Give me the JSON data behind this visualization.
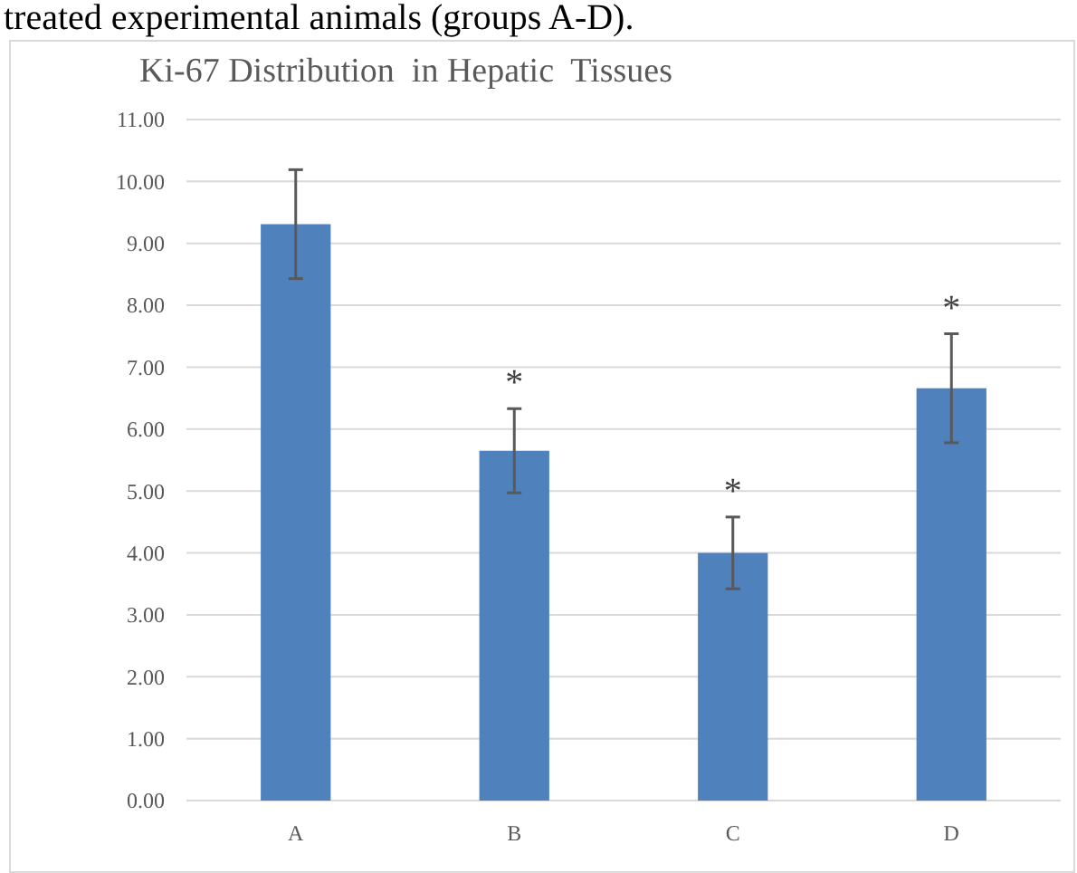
{
  "chart_data": {
    "type": "bar",
    "title": "Ki-67 Distribution  in Hepatic  Tissues",
    "categories": [
      "A",
      "B",
      "C",
      "D"
    ],
    "values": [
      9.31,
      5.65,
      4.0,
      6.66
    ],
    "errors": [
      0.88,
      0.68,
      0.58,
      0.88
    ],
    "color": "#4f81bd",
    "ylim": [
      0,
      11
    ],
    "yticks": [
      {
        "value": 0,
        "label": "0.00"
      },
      {
        "value": 1,
        "label": "1.00"
      },
      {
        "value": 2,
        "label": "2.00"
      },
      {
        "value": 3,
        "label": "3.00"
      },
      {
        "value": 4,
        "label": "4.00"
      },
      {
        "value": 5,
        "label": "5.00"
      },
      {
        "value": 6,
        "label": "6.00"
      },
      {
        "value": 7,
        "label": "7.00"
      },
      {
        "value": 8,
        "label": "8.00"
      },
      {
        "value": 9,
        "label": "9.00"
      },
      {
        "value": 10,
        "label": "10.00"
      },
      {
        "value": 11,
        "label": "11.00"
      }
    ],
    "grid": "y",
    "annotations": [
      "treated experimental animals (groups A-D).",
      {
        "text": "*",
        "x": "B",
        "y": 6.33
      },
      {
        "text": "*",
        "x": "C",
        "y": 4.58
      },
      {
        "text": "*",
        "x": "D",
        "y": 7.54
      }
    ]
  }
}
